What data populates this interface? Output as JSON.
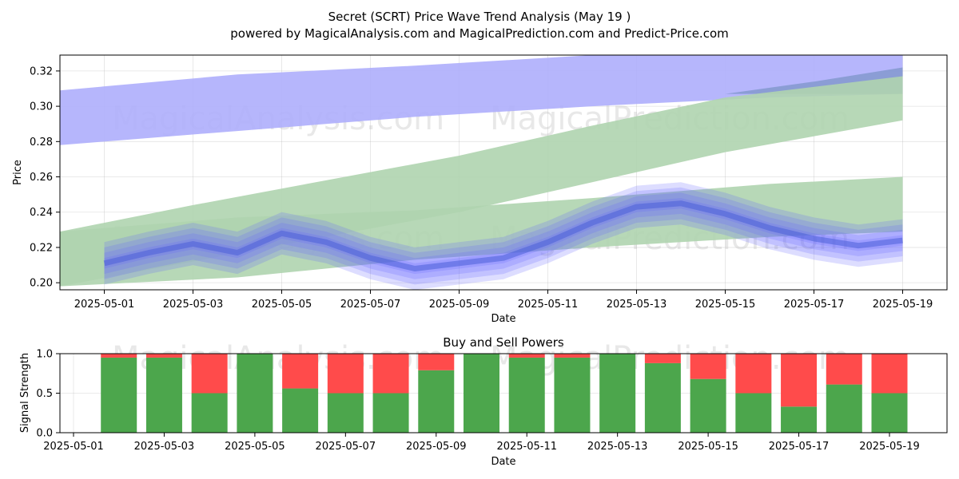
{
  "title_line1": "Secret (SCRT) Price Wave Trend Analysis (May 19 )",
  "title_line2": "powered by MagicalAnalysis.com and MagicalPrediction.com and Predict-Price.com",
  "watermarks": [
    "MagicalAnalysis.com",
    "MagicalPrediction.com"
  ],
  "colors": {
    "buy": "#4ca64c",
    "sell": "#ff4b4b",
    "wave": "#6666ff",
    "trend_blue": "#aeaefc",
    "trend_green": "#afd4af"
  },
  "chart_data": [
    {
      "type": "area",
      "title": "",
      "xlabel": "Date",
      "ylabel": "Price",
      "x_ticks": [
        "2025-05-01",
        "2025-05-03",
        "2025-05-05",
        "2025-05-07",
        "2025-05-09",
        "2025-05-11",
        "2025-05-13",
        "2025-05-15",
        "2025-05-17",
        "2025-05-19"
      ],
      "y_ticks": [
        "0.20",
        "0.22",
        "0.24",
        "0.26",
        "0.28",
        "0.30",
        "0.32"
      ],
      "xlim": [
        "2025-04-30",
        "2025-05-20"
      ],
      "ylim": [
        0.196,
        0.329
      ],
      "grid": true,
      "bands": [
        {
          "name": "",
          "color": "#aeaefc",
          "x": [
            "2025-04-30",
            "2025-05-04",
            "2025-05-08",
            "2025-05-12",
            "2025-05-16",
            "2025-05-19"
          ],
          "upper": [
            0.309,
            0.318,
            0.323,
            0.329,
            0.331,
            0.331
          ],
          "lower": [
            0.278,
            0.286,
            0.294,
            0.3,
            0.305,
            0.307
          ]
        },
        {
          "name": "",
          "color": "#7c94c8",
          "x": [
            "2025-05-15",
            "2025-05-17",
            "2025-05-19"
          ],
          "upper": [
            0.307,
            0.314,
            0.322
          ],
          "lower": [
            0.307,
            0.307,
            0.307
          ]
        },
        {
          "name": "",
          "color": "#afd4af",
          "x": [
            "2025-04-30",
            "2025-05-03",
            "2025-05-06",
            "2025-05-09",
            "2025-05-12",
            "2025-05-15",
            "2025-05-19"
          ],
          "upper": [
            0.229,
            0.244,
            0.258,
            0.272,
            0.289,
            0.305,
            0.317
          ],
          "lower": [
            0.198,
            0.212,
            0.226,
            0.24,
            0.257,
            0.274,
            0.292
          ]
        },
        {
          "name": "",
          "color": "#afd4af",
          "x": [
            "2025-04-30",
            "2025-05-04",
            "2025-05-08",
            "2025-05-12",
            "2025-05-16",
            "2025-05-19"
          ],
          "upper": [
            0.229,
            0.237,
            0.241,
            0.248,
            0.256,
            0.26
          ],
          "lower": [
            0.198,
            0.203,
            0.213,
            0.22,
            0.226,
            0.229
          ]
        }
      ],
      "waves": {
        "x": [
          "2025-05-01",
          "2025-05-02",
          "2025-05-03",
          "2025-05-04",
          "2025-05-05",
          "2025-05-06",
          "2025-05-07",
          "2025-05-08",
          "2025-05-09",
          "2025-05-10",
          "2025-05-11",
          "2025-05-12",
          "2025-05-13",
          "2025-05-14",
          "2025-05-15",
          "2025-05-16",
          "2025-05-17",
          "2025-05-18",
          "2025-05-19"
        ],
        "center": [
          0.211,
          0.217,
          0.222,
          0.217,
          0.228,
          0.223,
          0.214,
          0.208,
          0.211,
          0.214,
          0.223,
          0.234,
          0.243,
          0.245,
          0.239,
          0.231,
          0.225,
          0.221,
          0.224
        ],
        "offsets": [
          -0.006,
          -0.003,
          0,
          0.003,
          0.006
        ]
      }
    },
    {
      "type": "bar",
      "title": "Buy and Sell Powers",
      "xlabel": "Date",
      "ylabel": "Signal Strength",
      "x_ticks": [
        "2025-05-01",
        "2025-05-03",
        "2025-05-05",
        "2025-05-07",
        "2025-05-09",
        "2025-05-11",
        "2025-05-13",
        "2025-05-15",
        "2025-05-17",
        "2025-05-19"
      ],
      "y_ticks": [
        "0.0",
        "0.5",
        "1.0"
      ],
      "xlim": [
        "2025-04-30",
        "2025-05-20"
      ],
      "ylim": [
        0,
        1
      ],
      "grid": true,
      "categories": [
        "2025-05-02",
        "2025-05-03",
        "2025-05-04",
        "2025-05-05",
        "2025-05-06",
        "2025-05-07",
        "2025-05-08",
        "2025-05-09",
        "2025-05-10",
        "2025-05-11",
        "2025-05-12",
        "2025-05-13",
        "2025-05-14",
        "2025-05-15",
        "2025-05-16",
        "2025-05-17",
        "2025-05-18",
        "2025-05-19"
      ],
      "series": [
        {
          "name": "",
          "color": "#4ca64c",
          "values": [
            0.95,
            0.95,
            0.5,
            1.0,
            0.56,
            0.5,
            0.5,
            0.79,
            1.0,
            0.95,
            0.95,
            1.0,
            0.88,
            0.68,
            0.5,
            0.33,
            0.61,
            0.5
          ]
        },
        {
          "name": "",
          "color": "#ff4b4b",
          "values": [
            0.05,
            0.05,
            0.5,
            0.0,
            0.44,
            0.5,
            0.5,
            0.21,
            0.0,
            0.05,
            0.05,
            0.0,
            0.12,
            0.32,
            0.5,
            0.67,
            0.39,
            0.5
          ]
        }
      ]
    }
  ]
}
